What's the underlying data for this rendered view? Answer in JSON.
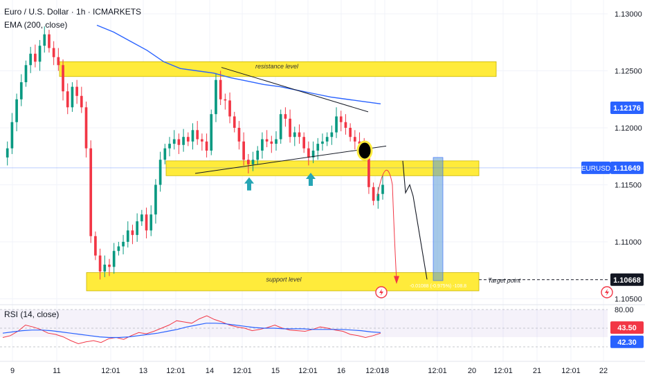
{
  "header": {
    "symbol_line": "Euro / U.S. Dollar · 1h · ICMARKETS",
    "indicator_line": "EMA (200, close)"
  },
  "rsi_panel": {
    "title": "RSI (14, close)",
    "levels": [
      {
        "label": "80.00",
        "value": 80
      },
      {
        "label": "43.50",
        "value": 43.5,
        "color": "#f23645"
      },
      {
        "label": "42.30",
        "value": 42.3,
        "color": "#2962ff"
      }
    ]
  },
  "annotations": {
    "resistance_label": "resistance level",
    "support_label": "support level",
    "target_label": "Target point",
    "measure_label": "-0.01088 (-0.975%) -108.8"
  },
  "price_tags": {
    "ema": {
      "value": "1.12176",
      "color": "#2962ff"
    },
    "current": {
      "symbol": "EURUSD",
      "value": "1.11649",
      "color": "#2962ff"
    },
    "target": {
      "value": "1.10668",
      "color": "#131722"
    }
  },
  "chart_data": {
    "type": "candlestick",
    "symbol": "Euro / U.S. Dollar",
    "timeframe": "1h",
    "source": "ICMARKETS",
    "y_tick_labels": [
      "1.13000",
      "1.12500",
      "1.12000",
      "1.11500",
      "1.11000",
      "1.10500"
    ],
    "y_ticks": [
      1.13,
      1.125,
      1.12,
      1.115,
      1.11,
      1.105
    ],
    "x_tick_labels": [
      "9",
      "11",
      "12:01",
      "13",
      "12:01",
      "14",
      "12:01",
      "15",
      "12:01",
      "16",
      "12:01",
      "18",
      "12:01",
      "20",
      "12:01",
      "21",
      "12:01",
      "22"
    ],
    "levels": {
      "resistance": [
        1.1245,
        1.1258
      ],
      "entry_zone": [
        1.1158,
        1.1171
      ],
      "support": [
        1.1057,
        1.1073
      ],
      "target": 1.10668
    },
    "price_path": [
      1.1174,
      1.1182,
      1.1205,
      1.1225,
      1.124,
      1.1255,
      1.1265,
      1.1258,
      1.1272,
      1.1282,
      1.127,
      1.1262,
      1.1255,
      1.1232,
      1.1218,
      1.1236,
      1.1228,
      1.1218,
      1.1182,
      1.1105,
      1.1088,
      1.1074,
      1.108,
      1.1078,
      1.1092,
      1.1096,
      1.11,
      1.111,
      1.1106,
      1.1118,
      1.1124,
      1.111,
      1.1124,
      1.115,
      1.1172,
      1.1182,
      1.1186,
      1.119,
      1.1185,
      1.1192,
      1.1188,
      1.1198,
      1.119,
      1.1188,
      1.118,
      1.1212,
      1.1242,
      1.1225,
      1.1224,
      1.121,
      1.12,
      1.1188,
      1.1172,
      1.1168,
      1.1172,
      1.118,
      1.119,
      1.1188,
      1.1186,
      1.119,
      1.1212,
      1.1208,
      1.1192,
      1.1196,
      1.1192,
      1.1182,
      1.1174,
      1.118,
      1.1186,
      1.1188,
      1.1192,
      1.1196,
      1.121,
      1.1205,
      1.12,
      1.1192,
      1.1188,
      1.1186,
      1.118,
      1.1148,
      1.1136,
      1.1142,
      1.115
    ],
    "ema200_path": [
      1.129,
      1.1284,
      1.1276,
      1.1268,
      1.1258,
      1.1252,
      1.125,
      1.1248,
      1.1244,
      1.1241,
      1.1238,
      1.1236,
      1.1233,
      1.123,
      1.1227,
      1.1225,
      1.1223,
      1.1221
    ],
    "rsi": {
      "title": "RSI (14, close)",
      "levels": [
        80,
        43.5,
        42.3
      ],
      "rsi_path": [
        35,
        38,
        45,
        55,
        52,
        48,
        42,
        40,
        36,
        30,
        25,
        28,
        30,
        27,
        33,
        35,
        32,
        38,
        43,
        41,
        45,
        50,
        55,
        62,
        60,
        58,
        65,
        70,
        64,
        60,
        55,
        52,
        50,
        46,
        48,
        51,
        55,
        50,
        47,
        46,
        45,
        48,
        52,
        50,
        47,
        45,
        40,
        38,
        35,
        38,
        42
      ],
      "ma_path": [
        42,
        44,
        46,
        47,
        47,
        46,
        44,
        42,
        40,
        38,
        36,
        35,
        35,
        36,
        38,
        40,
        42,
        45,
        48,
        52,
        55,
        58,
        58,
        57,
        55,
        53,
        51,
        50,
        50,
        49,
        49,
        49,
        48,
        48,
        48,
        48,
        47,
        46,
        44,
        43
      ]
    }
  }
}
